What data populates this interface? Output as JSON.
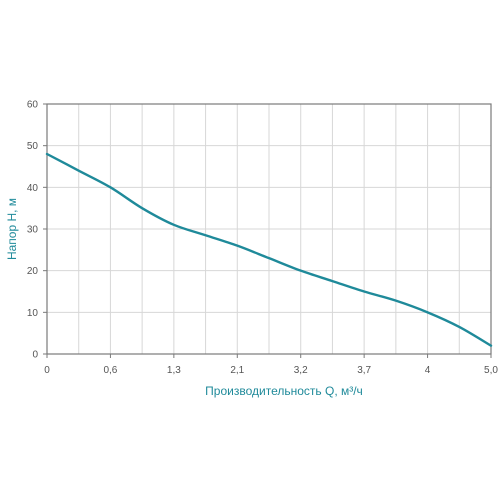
{
  "chart_data": {
    "type": "line",
    "title": "",
    "xlabel": "Производительность Q, м³/ч",
    "ylabel": "Напор H, м",
    "x_tick_labels": [
      "0",
      "0,6",
      "1,3",
      "2,1",
      "3,2",
      "3,7",
      "4",
      "5,0"
    ],
    "y_ticks": [
      0,
      10,
      20,
      30,
      40,
      50,
      60
    ],
    "ylim": [
      0,
      60
    ],
    "grid": true,
    "colors": {
      "line": "#1f8a9a",
      "axis_title": "#1f8a9a"
    },
    "series": [
      {
        "x_tick_index": [
          0,
          0.5,
          1,
          1.5,
          2,
          2.5,
          3,
          3.5,
          4,
          4.5,
          5,
          5.5,
          6,
          6.5,
          7
        ],
        "y": [
          48,
          44,
          40,
          35,
          31,
          28.5,
          26,
          23,
          20,
          17.5,
          15,
          12.8,
          10,
          6.5,
          2
        ]
      }
    ]
  }
}
